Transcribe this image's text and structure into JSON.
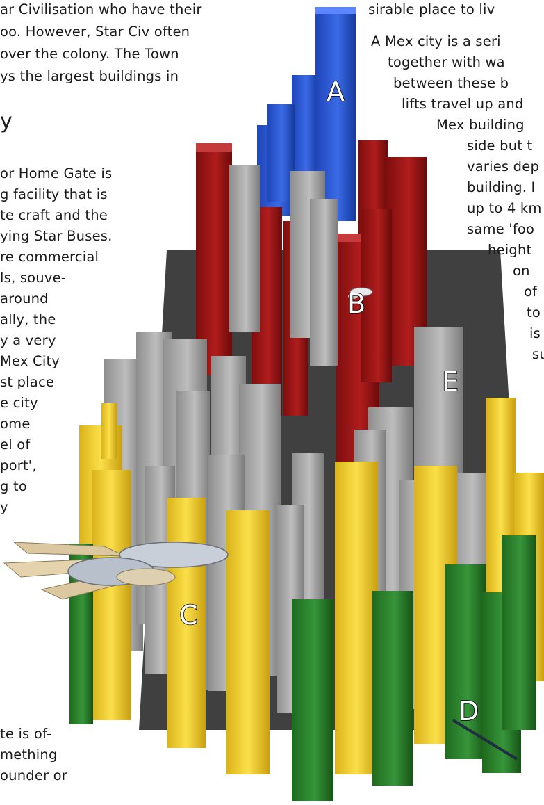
{
  "left_column": {
    "top_lines": [
      "ar Civilisation who have their",
      "oo. However, Star Civ often",
      "over the colony. The Town",
      "ys the largest buildings in"
    ],
    "heading_fragment": "y",
    "body_lines": [
      "or Home Gate is",
      "g facility that is",
      "te craft and the",
      "ying Star Buses.",
      "re commercial",
      "ls, souve-",
      "around",
      "ally, the",
      "y a very",
      "Mex City",
      "st place",
      "e city",
      "ome",
      "el of",
      "port',",
      "g to",
      "y"
    ],
    "bottom_lines": [
      "te is of-",
      "mething",
      "ounder or"
    ]
  },
  "right_column": {
    "lines": [
      "sirable place to liv",
      "A Mex city is a seri",
      "together with wa",
      "between these b",
      "lifts travel up and",
      "Mex building",
      "side but t",
      "varies dep",
      "building. I",
      "up to 4 km",
      "same 'foo",
      "height",
      "on",
      "of",
      "to",
      "is",
      "su"
    ]
  },
  "illustration": {
    "markers": [
      "A",
      "B",
      "C",
      "D",
      "E"
    ],
    "colors": {
      "blue": "#2f5fd6",
      "red": "#a01616",
      "gray": "#a9a9a9",
      "yellow": "#f2cf2c",
      "green": "#2d7e2a",
      "ship": "#d8c7a3"
    }
  }
}
